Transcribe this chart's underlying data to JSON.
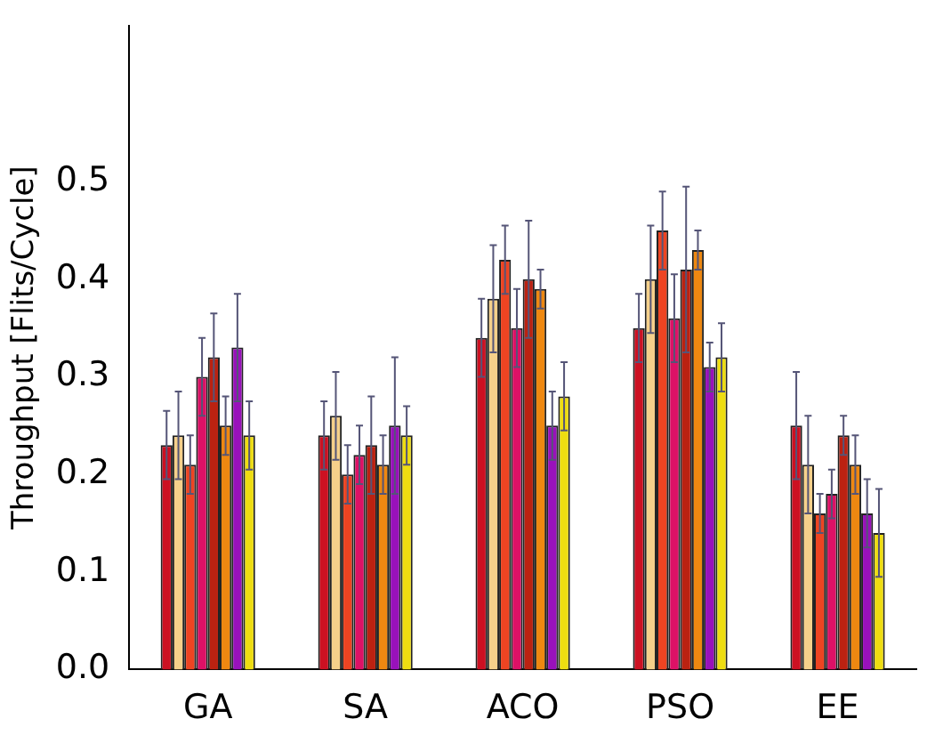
{
  "chart_data": {
    "type": "bar",
    "ylabel": "Throughput [Flits/Cycle]",
    "categories": [
      "GA",
      "SA",
      "ACO",
      "PSO",
      "EE"
    ],
    "series": [
      {
        "color": "#cc1122",
        "values": [
          0.23,
          0.24,
          0.34,
          0.35,
          0.25
        ],
        "errors": [
          0.035,
          0.035,
          0.04,
          0.035,
          0.055
        ]
      },
      {
        "color": "#f5d08a",
        "values": [
          0.24,
          0.26,
          0.38,
          0.4,
          0.21
        ],
        "errors": [
          0.045,
          0.045,
          0.055,
          0.055,
          0.05
        ]
      },
      {
        "color": "#ee4422",
        "values": [
          0.21,
          0.2,
          0.42,
          0.45,
          0.16
        ],
        "errors": [
          0.03,
          0.03,
          0.035,
          0.04,
          0.02
        ]
      },
      {
        "color": "#dd1166",
        "values": [
          0.3,
          0.22,
          0.35,
          0.36,
          0.18
        ],
        "errors": [
          0.04,
          0.03,
          0.04,
          0.045,
          0.025
        ]
      },
      {
        "color": "#bb2211",
        "values": [
          0.32,
          0.23,
          0.4,
          0.41,
          0.24
        ],
        "errors": [
          0.045,
          0.05,
          0.06,
          0.085,
          0.02
        ]
      },
      {
        "color": "#ee8811",
        "values": [
          0.25,
          0.21,
          0.39,
          0.43,
          0.21
        ],
        "errors": [
          0.03,
          0.03,
          0.02,
          0.02,
          0.03
        ]
      },
      {
        "color": "#9911bb",
        "values": [
          0.33,
          0.25,
          0.25,
          0.31,
          0.16
        ],
        "errors": [
          0.055,
          0.07,
          0.035,
          0.025,
          0.035
        ]
      },
      {
        "color": "#eedd11",
        "values": [
          0.24,
          0.24,
          0.28,
          0.32,
          0.14
        ],
        "errors": [
          0.035,
          0.03,
          0.035,
          0.035,
          0.045
        ]
      }
    ],
    "ylim": [
      0,
      0.66
    ],
    "yticks": [
      {
        "value": 0,
        "label": "0.0"
      },
      0.1,
      0.2,
      0.3,
      0.4,
      0.5
    ],
    "grid": false,
    "legend": false
  }
}
